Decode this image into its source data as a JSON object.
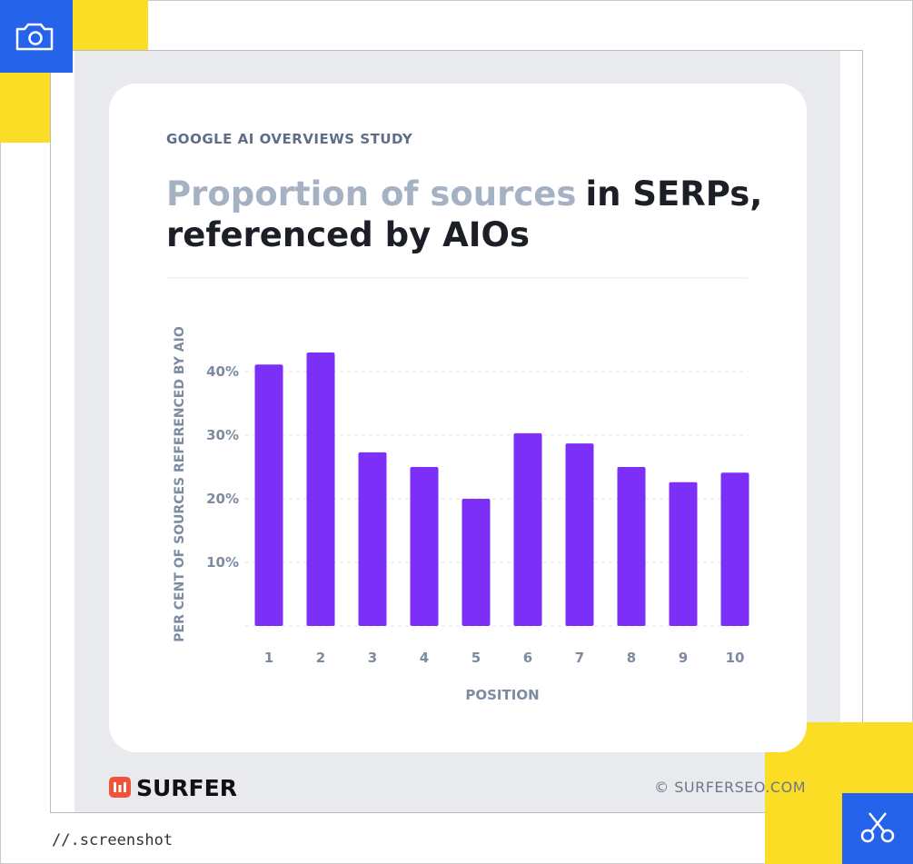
{
  "frame": {
    "caption": "//.screenshot"
  },
  "chart_data": {
    "type": "bar",
    "kicker": "GOOGLE AI OVERVIEWS STUDY",
    "title": [
      "Proportion of sources",
      "in SERPs,",
      "referenced by AIOs"
    ],
    "x_label": "POSITION",
    "y_label": "PER CENT OF SOURCES REFERENCED BY AIO",
    "categories": [
      "1",
      "2",
      "3",
      "4",
      "5",
      "6",
      "7",
      "8",
      "9",
      "10"
    ],
    "values": [
      41.1,
      43,
      27.3,
      25,
      20,
      30.3,
      28.7,
      25,
      22.6,
      24.1
    ],
    "color": "#7b2ff7",
    "ylim": [
      0,
      50
    ],
    "yticks": [
      {
        "value": 10,
        "label": "10%"
      },
      {
        "value": 20,
        "label": "20%"
      },
      {
        "value": 30,
        "label": "30%"
      },
      {
        "value": 40,
        "label": "40%"
      }
    ],
    "grid": true
  },
  "footer": {
    "brand": "SURFER",
    "credit": "© SURFERSEO.COM"
  }
}
